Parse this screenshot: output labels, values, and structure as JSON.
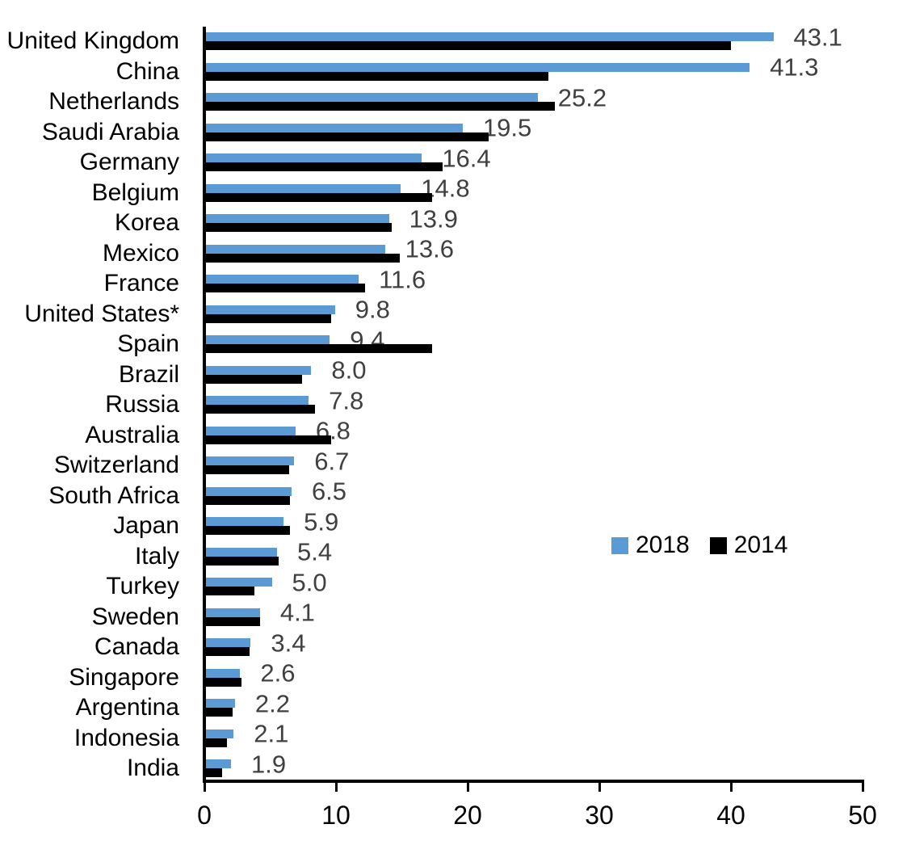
{
  "chart_data": {
    "type": "bar",
    "orientation": "horizontal",
    "title": "",
    "xlabel": "",
    "ylabel": "",
    "grid": false,
    "xlim": [
      0,
      50
    ],
    "x_tick_labels": [
      "0",
      "10",
      "20",
      "30",
      "40",
      "50"
    ],
    "x_tick_values": [
      0,
      10,
      20,
      30,
      40,
      50
    ],
    "legend_position": "middle-right",
    "categories": [
      "United Kingdom",
      "China",
      "Netherlands",
      "Saudi Arabia",
      "Germany",
      "Belgium",
      "Korea",
      "Mexico",
      "France",
      "United States*",
      "Spain",
      "Brazil",
      "Russia",
      "Australia",
      "Switzerland",
      "South Africa",
      "Japan",
      "Italy",
      "Turkey",
      "Sweden",
      "Canada",
      "Singapore",
      "Argentina",
      "Indonesia",
      "India"
    ],
    "series": [
      {
        "name": "2018",
        "color": "#5B9BD5",
        "values": [
          43.1,
          41.3,
          25.2,
          19.5,
          16.4,
          14.8,
          13.9,
          13.6,
          11.6,
          9.8,
          9.4,
          8.0,
          7.8,
          6.8,
          6.7,
          6.5,
          5.9,
          5.4,
          5.0,
          4.1,
          3.4,
          2.6,
          2.2,
          2.1,
          1.9
        ],
        "data_labels": [
          "43.1",
          "41.3",
          "25.2",
          "19.5",
          "16.4",
          "14.8",
          "13.9",
          "13.6",
          "11.6",
          "9.8",
          "9.4",
          "8.0",
          "7.8",
          "6.8",
          "6.7",
          "6.5",
          "5.9",
          "5.4",
          "5.0",
          "4.1",
          "3.4",
          "2.6",
          "2.2",
          "2.1",
          "1.9"
        ]
      },
      {
        "name": "2014",
        "color": "#000000",
        "values": [
          39.9,
          26.0,
          26.5,
          21.5,
          18.0,
          17.2,
          14.1,
          14.7,
          12.1,
          9.5,
          17.2,
          7.3,
          8.3,
          9.5,
          6.3,
          6.4,
          6.4,
          5.5,
          3.7,
          4.1,
          3.3,
          2.7,
          2.0,
          1.6,
          1.2
        ],
        "data_labels": []
      }
    ]
  },
  "legend": {
    "items": [
      {
        "label": "2018",
        "color": "#5B9BD5"
      },
      {
        "label": "2014",
        "color": "#000000"
      }
    ]
  },
  "colors": {
    "axis": "#000000",
    "category_label": "#000000",
    "value_label": "#404040",
    "background": "#ffffff"
  }
}
